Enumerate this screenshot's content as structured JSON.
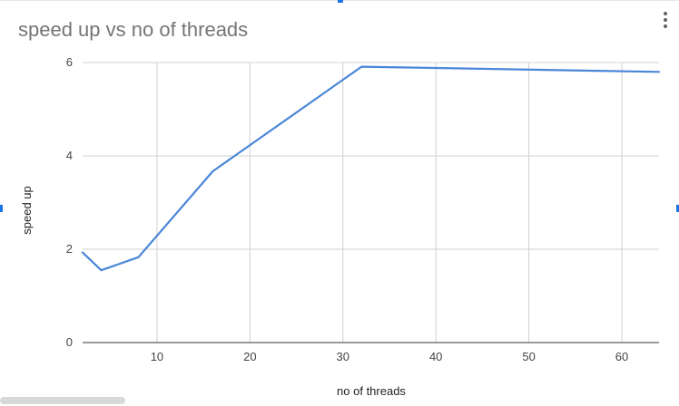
{
  "chart_data": {
    "type": "line",
    "title": "speed up vs no of threads",
    "xlabel": "no of threads",
    "ylabel": "speed up",
    "xlim": [
      2,
      64
    ],
    "ylim": [
      0,
      6
    ],
    "xticks": [
      10,
      20,
      30,
      40,
      50,
      60
    ],
    "yticks": [
      0,
      2,
      4,
      6
    ],
    "grid": true,
    "legend": "none",
    "series": [
      {
        "color": "#4a86d8",
        "x": [
          2,
          4,
          8,
          16,
          32,
          64
        ],
        "y": [
          1.93,
          1.55,
          1.83,
          3.67,
          5.91,
          5.8
        ]
      }
    ]
  }
}
